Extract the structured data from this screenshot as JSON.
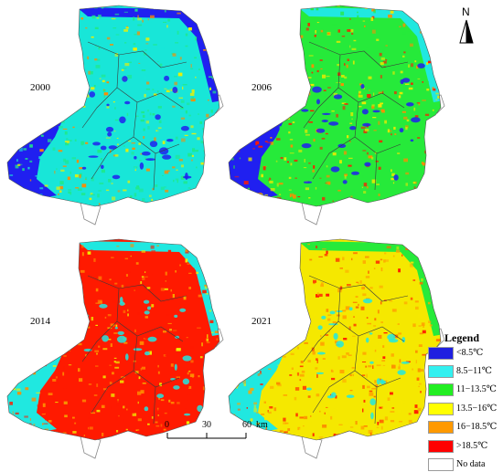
{
  "panels": [
    {
      "year": "2000",
      "palette": {
        "base": "#18e6d8",
        "mid": "#1fe98b",
        "hot": "#f0f000",
        "spot": "#ff8a00",
        "water": "#2020f0",
        "rim": "#2020f0"
      }
    },
    {
      "year": "2006",
      "palette": {
        "base": "#26ea3a",
        "mid": "#eaea00",
        "hot": "#ff8c00",
        "spot": "#ff1a00",
        "water": "#2020f0",
        "rim": "#20e8e0"
      }
    },
    {
      "year": "2014",
      "palette": {
        "base": "#ff1a00",
        "mid": "#ff8c00",
        "hot": "#f0f000",
        "spot": "#ff1a00",
        "water": "#20e8e0",
        "rim": "#20e8e0"
      }
    },
    {
      "year": "2021",
      "palette": {
        "base": "#f5e800",
        "mid": "#ffa500",
        "hot": "#ff6a00",
        "spot": "#ff1a00",
        "water": "#20e8e0",
        "rim": "#26ea3a"
      }
    }
  ],
  "legend": {
    "title": "Legend",
    "items": [
      {
        "label": "<8.5℃",
        "color": "#1f1fe0"
      },
      {
        "label": "8.5−11℃",
        "color": "#33f0f0"
      },
      {
        "label": "11−13.5℃",
        "color": "#22ee22"
      },
      {
        "label": "13.5−16℃",
        "color": "#ffff00"
      },
      {
        "label": "16−18.5℃",
        "color": "#ff9900"
      },
      {
        "label": ">18.5℃",
        "color": "#ff0000"
      },
      {
        "label": "No data",
        "color": "#ffffff"
      }
    ]
  },
  "scale_bar": {
    "ticks": [
      "0",
      "30",
      "60"
    ],
    "unit": "km"
  },
  "north_arrow": {
    "label": "N"
  }
}
